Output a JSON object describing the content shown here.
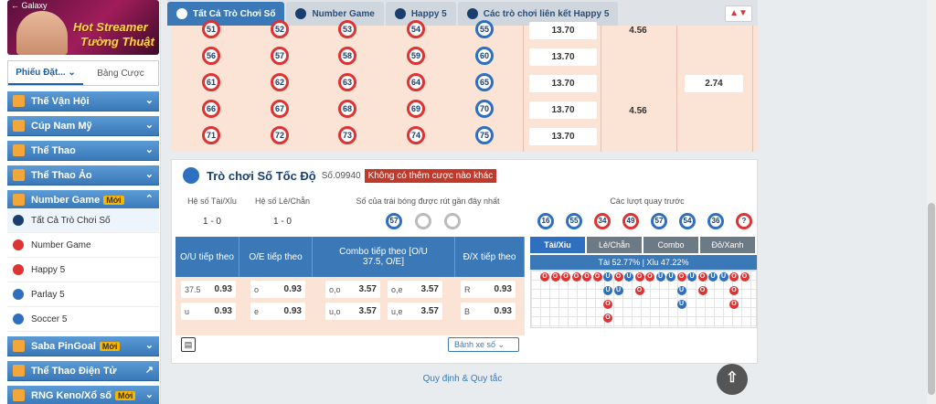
{
  "sidebar": {
    "banner": {
      "back_label": "← Galaxy",
      "line1": "Hot Streamer",
      "line2": "Tường Thuật"
    },
    "tabs": [
      {
        "label": "Phiếu Đặt...",
        "active": true
      },
      {
        "label": "Bảng Cược",
        "active": false
      }
    ],
    "nav": [
      {
        "label": "Thế Vận Hội",
        "chevron": "⌄"
      },
      {
        "label": "Cúp Nam Mỹ",
        "chevron": "⌄"
      },
      {
        "label": "Thể Thao",
        "chevron": "⌄"
      },
      {
        "label": "Thể Thao Ảo",
        "chevron": "⌄"
      },
      {
        "label": "Number Game",
        "badge": "Mới",
        "chevron": "⌃"
      }
    ],
    "subitems": [
      {
        "label": "Tất Cả Trò Chơi Số",
        "active": true,
        "color": "#1a3f6f"
      },
      {
        "label": "Number Game",
        "active": false,
        "color": "#d33"
      },
      {
        "label": "Happy 5",
        "active": false,
        "color": "#d33"
      },
      {
        "label": "Parlay 5",
        "active": false,
        "color": "#2f6fc0"
      },
      {
        "label": "Soccer 5",
        "active": false,
        "color": "#2f6fc0"
      }
    ],
    "nav2": [
      {
        "label": "Saba PinGoal",
        "badge": "Mới",
        "chevron": "⌄"
      },
      {
        "label": "Thể Thao Điện Tử",
        "chevron": "↗"
      },
      {
        "label": "RNG Keno/Xổ số",
        "badge": "Mới",
        "chevron": "⌄"
      }
    ]
  },
  "tabs": [
    {
      "label": "Tất Cả Trò Chơi Số",
      "active": true
    },
    {
      "label": "Number Game",
      "active": false
    },
    {
      "label": "Happy 5",
      "active": false
    },
    {
      "label": "Các trò chơi liên kết Happy 5",
      "active": false
    }
  ],
  "sort_icon": "▲▼",
  "grid": {
    "rows": [
      [
        "51",
        "52",
        "53",
        "54",
        "55"
      ],
      [
        "56",
        "57",
        "58",
        "59",
        "60"
      ],
      [
        "61",
        "62",
        "63",
        "64",
        "65"
      ],
      [
        "66",
        "67",
        "68",
        "69",
        "70"
      ],
      [
        "71",
        "72",
        "73",
        "74",
        "75"
      ]
    ],
    "odds_col1": [
      "13.70",
      "13.70",
      "13.70",
      "13.70",
      "13.70"
    ],
    "odds_col2": [
      "4.56",
      "4.56"
    ],
    "odds_col3": [
      "2.74"
    ]
  },
  "panel": {
    "title": "Trò chơi Số Tốc Độ",
    "number": "Số.09940",
    "warning": "Không có thêm cược nào khác",
    "stats": [
      {
        "label": "Hệ số Tài/Xỉu",
        "value": "1 - 0"
      },
      {
        "label": "Hệ số Lẻ/Chẵn",
        "value": "1 - 0"
      }
    ],
    "recent_label": "Số của trái bóng được rút gần đây nhất",
    "recent_balls": [
      "57",
      "",
      ""
    ],
    "prev_label": "Các lượt quay trước",
    "prev_balls": [
      {
        "n": "16",
        "c": "blue"
      },
      {
        "n": "55",
        "c": "blue"
      },
      {
        "n": "34",
        "c": "red"
      },
      {
        "n": "49",
        "c": "red"
      },
      {
        "n": "57",
        "c": "blue"
      },
      {
        "n": "54",
        "c": "blue"
      },
      {
        "n": "36",
        "c": "blue"
      },
      {
        "n": "?",
        "c": "red"
      }
    ],
    "bet_heads": [
      "O/U tiếp theo",
      "O/E tiếp theo",
      "Combo tiếp theo [O/U 37.5, O/E]",
      "Đ/X tiếp theo"
    ],
    "bets": {
      "ou": [
        {
          "k": "37.5",
          "o": "0.93"
        },
        {
          "k": "u",
          "o": "0.93"
        }
      ],
      "oe": [
        {
          "k": "o",
          "o": "0.93"
        },
        {
          "k": "e",
          "o": "0.93"
        }
      ],
      "combo": [
        {
          "k": "o,o",
          "o": "3.57"
        },
        {
          "k": "o,e",
          "o": "3.57"
        },
        {
          "k": "u,o",
          "o": "3.57"
        },
        {
          "k": "u,e",
          "o": "3.57"
        }
      ],
      "rb": [
        {
          "k": "R",
          "o": "0.93"
        },
        {
          "k": "B",
          "o": "0.93"
        }
      ]
    },
    "road_tabs": [
      {
        "label": "Tài/Xỉu",
        "active": true
      },
      {
        "label": "Lẻ/Chẵn",
        "active": false
      },
      {
        "label": "Combo",
        "active": false
      },
      {
        "label": "Đỏ/Xanh",
        "active": false
      }
    ],
    "percent": "Tài 52.77% | Xỉu 47.22%",
    "road": [
      [
        "O",
        "O",
        "O",
        "O",
        "O",
        "O",
        "U",
        "O",
        "U",
        "O",
        "O",
        "U",
        "U",
        "O",
        "U",
        "O",
        "U",
        "U",
        "O",
        "O"
      ],
      [
        "",
        "",
        "",
        "",
        "",
        "",
        "U",
        "U",
        "",
        "O",
        "",
        "",
        "",
        "U",
        "",
        "O",
        "",
        "",
        "O",
        ""
      ],
      [
        "",
        "",
        "",
        "",
        "",
        "",
        "O",
        "",
        "",
        "",
        "",
        "",
        "",
        "U",
        "",
        "",
        "",
        "",
        "O",
        ""
      ],
      [
        "",
        "",
        "",
        "",
        "",
        "",
        "O",
        "",
        "",
        "",
        "",
        "",
        "",
        "",
        "",
        "",
        "",
        "",
        "",
        ""
      ]
    ],
    "dropdown": "Bảnh xe số",
    "print_icon": "printer-icon"
  },
  "footer": "Quy định & Quy tắc",
  "scroll_top": "⇧"
}
